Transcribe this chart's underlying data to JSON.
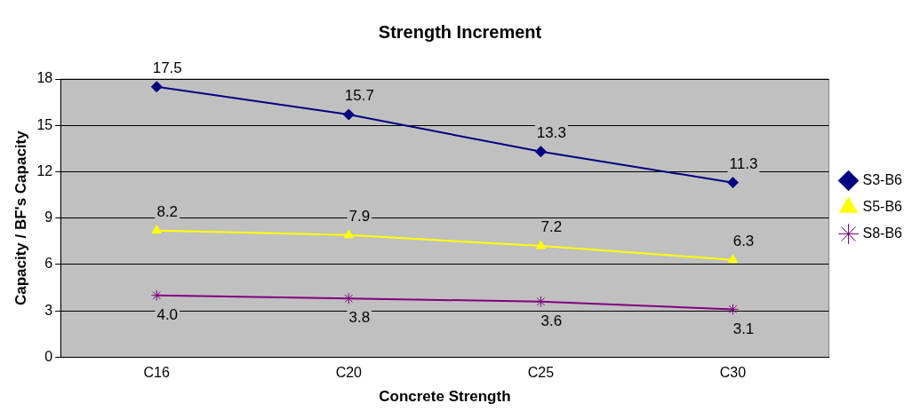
{
  "chart_data": {
    "type": "line",
    "title": "Strength Increment",
    "xlabel": "Concrete Strength",
    "ylabel": "Capacity / BF's Capacity",
    "categories": [
      "C16",
      "C20",
      "C25",
      "C30"
    ],
    "series": [
      {
        "name": "S3-B6",
        "color": "#000080",
        "marker": "diamond",
        "values": [
          17.5,
          15.7,
          13.3,
          11.3
        ],
        "value_labels": [
          "17.5",
          "15.7",
          "13.3",
          "11.3"
        ]
      },
      {
        "name": "S5-B6",
        "color": "#ffff00",
        "marker": "triangle",
        "values": [
          8.2,
          7.9,
          7.2,
          6.3
        ],
        "value_labels": [
          "8.2",
          "7.9",
          "7.2",
          "6.3"
        ]
      },
      {
        "name": "S8-B6",
        "color": "#800080",
        "marker": "cross",
        "values": [
          4.0,
          3.8,
          3.6,
          3.1
        ],
        "value_labels": [
          "4.0",
          "3.8",
          "3.6",
          "3.1"
        ]
      }
    ],
    "ylim": [
      0,
      18
    ],
    "yticks": [
      0,
      3,
      6,
      9,
      12,
      15,
      18
    ],
    "grid": "y",
    "legend": "right"
  }
}
